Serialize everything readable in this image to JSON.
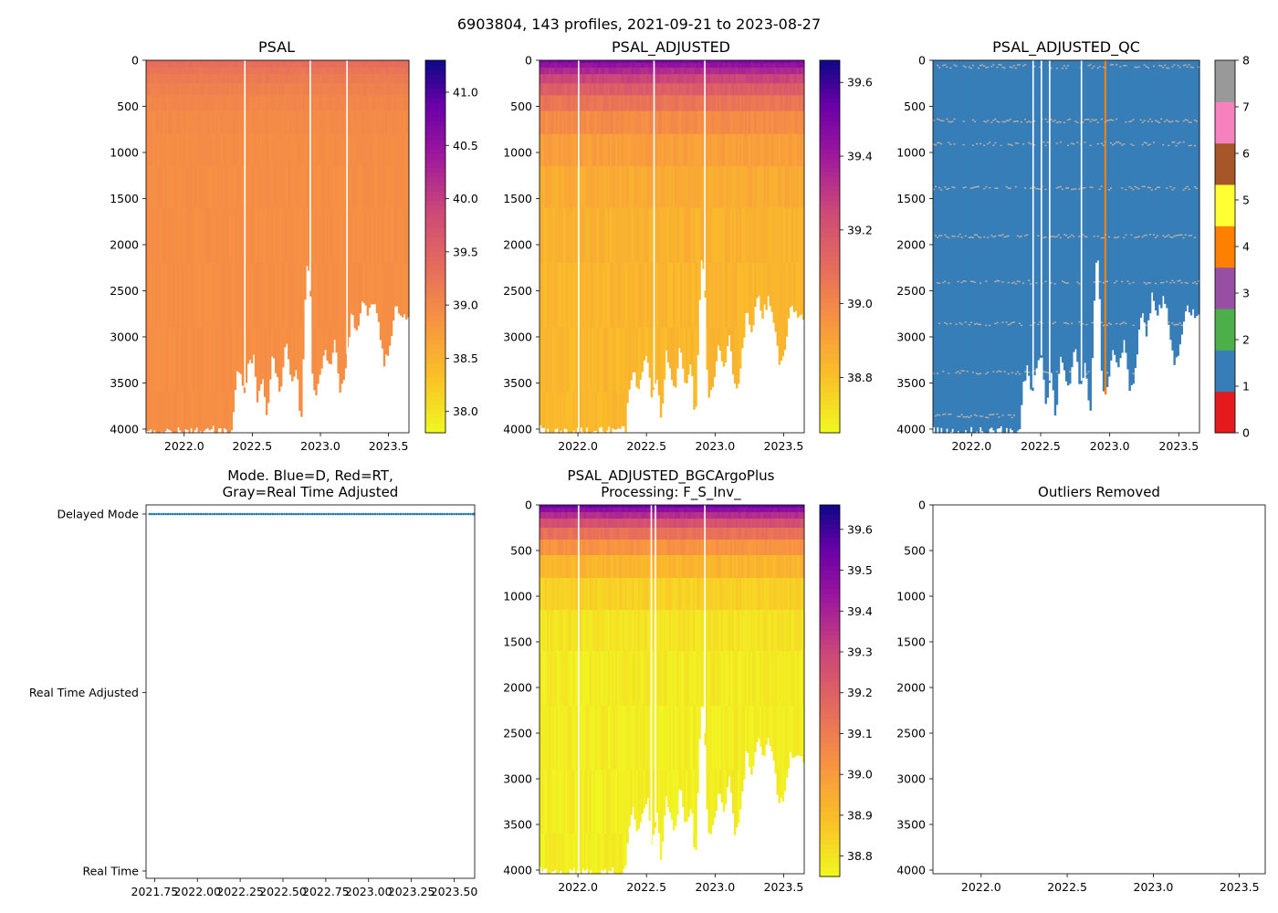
{
  "figure": {
    "suptitle": "6903804, 143 profiles, 2021-09-21 to 2023-08-27"
  },
  "chart_data": [
    {
      "id": "psal",
      "type": "heatmap",
      "title": "PSAL",
      "xlim": [
        2021.72,
        2023.65
      ],
      "ylim": [
        4040,
        0
      ],
      "xticks": [
        "2022.0",
        "2022.5",
        "2023.0",
        "2023.5"
      ],
      "xtick_values": [
        2022.0,
        2022.5,
        2023.0,
        2023.5
      ],
      "yticks": [
        "0",
        "500",
        "1000",
        "1500",
        "2000",
        "2500",
        "3000",
        "3500",
        "4000"
      ],
      "ytick_values": [
        0,
        500,
        1000,
        1500,
        2000,
        2500,
        3000,
        3500,
        4000
      ],
      "gap_times": [
        2022.44,
        2022.92,
        2023.19
      ],
      "colorbar": {
        "vmin": 37.8,
        "vmax": 41.3,
        "palette": "plasma_r",
        "ticks": [
          "38.0",
          "38.5",
          "39.0",
          "39.5",
          "40.0",
          "40.5",
          "41.0"
        ],
        "tick_values": [
          38.0,
          38.5,
          39.0,
          39.5,
          40.0,
          40.5,
          41.0
        ]
      }
    },
    {
      "id": "psal_adjusted",
      "type": "heatmap",
      "title": "PSAL_ADJUSTED",
      "xlim": [
        2021.72,
        2023.65
      ],
      "ylim": [
        4040,
        0
      ],
      "xticks": [
        "2022.0",
        "2022.5",
        "2023.0",
        "2023.5"
      ],
      "xtick_values": [
        2022.0,
        2022.5,
        2023.0,
        2023.5
      ],
      "yticks": [
        "0",
        "500",
        "1000",
        "1500",
        "2000",
        "2500",
        "3000",
        "3500",
        "4000"
      ],
      "ytick_values": [
        0,
        500,
        1000,
        1500,
        2000,
        2500,
        3000,
        3500,
        4000
      ],
      "gap_times": [
        2022.0,
        2022.55,
        2022.92
      ],
      "colorbar": {
        "vmin": 38.65,
        "vmax": 39.66,
        "palette": "plasma_r",
        "ticks": [
          "38.8",
          "39.0",
          "39.2",
          "39.4",
          "39.6"
        ],
        "tick_values": [
          38.8,
          39.0,
          39.2,
          39.4,
          39.6
        ]
      }
    },
    {
      "id": "psal_adjusted_qc",
      "type": "heatmap",
      "title": "PSAL_ADJUSTED_QC",
      "xlim": [
        2021.72,
        2023.65
      ],
      "ylim": [
        4040,
        0
      ],
      "xticks": [
        "2022.0",
        "2022.5",
        "2023.0",
        "2023.5"
      ],
      "xtick_values": [
        2022.0,
        2022.5,
        2023.0,
        2023.5
      ],
      "yticks": [
        "0",
        "500",
        "1000",
        "1500",
        "2000",
        "2500",
        "3000",
        "3500",
        "4000"
      ],
      "ytick_values": [
        0,
        500,
        1000,
        1500,
        2000,
        2500,
        3000,
        3500,
        4000
      ],
      "gap_times": [
        2022.44,
        2022.5,
        2022.56,
        2022.79
      ],
      "qc_flagged_depths": [
        60,
        650,
        900,
        1380,
        1900,
        2400,
        2850,
        3380,
        3850
      ],
      "qc4_profile_time": 2022.96,
      "colorbar": {
        "vmin": 0,
        "vmax": 8,
        "palette": "qc",
        "ticks": [
          "0",
          "1",
          "2",
          "3",
          "4",
          "5",
          "6",
          "7",
          "8"
        ],
        "tick_values": [
          0,
          1,
          2,
          3,
          4,
          5,
          6,
          7,
          8
        ],
        "colors": [
          "#e41a1c",
          "#377eb8",
          "#4daf4a",
          "#984ea3",
          "#ff7f00",
          "#ffff33",
          "#a65628",
          "#f781bf",
          "#999999"
        ]
      }
    },
    {
      "id": "mode",
      "type": "scatter",
      "title_line1": "Mode. Blue=D, Red=RT,",
      "title_line2": "Gray=Real Time Adjusted",
      "xlim": [
        2021.7,
        2023.62
      ],
      "ylim": [
        0,
        2
      ],
      "xticks": [
        "2021.75",
        "2022.00",
        "2022.25",
        "2022.50",
        "2022.75",
        "2023.00",
        "2023.25",
        "2023.50"
      ],
      "xtick_values": [
        2021.75,
        2022.0,
        2022.25,
        2022.5,
        2022.75,
        2023.0,
        2023.25,
        2023.5
      ],
      "yticks": [
        "Real Time",
        "Real Time Adjusted",
        "Delayed Mode"
      ],
      "ytick_values": [
        0,
        1,
        2
      ],
      "series": [
        {
          "name": "Delayed Mode",
          "color": "#1f77b4",
          "mode_value": 2,
          "n_points": 143,
          "t_start": 2021.72,
          "t_end": 2023.65
        }
      ]
    },
    {
      "id": "psal_adjusted_bgcargoplus",
      "type": "heatmap",
      "title_line1": "PSAL_ADJUSTED_BGCArgoPlus",
      "title_line2": "Processing: F_S_Inv_",
      "xlim": [
        2021.72,
        2023.65
      ],
      "ylim": [
        4040,
        0
      ],
      "xticks": [
        "2022.0",
        "2022.5",
        "2023.0",
        "2023.5"
      ],
      "xtick_values": [
        2022.0,
        2022.5,
        2023.0,
        2023.5
      ],
      "yticks": [
        "0",
        "500",
        "1000",
        "1500",
        "2000",
        "2500",
        "3000",
        "3500",
        "4000"
      ],
      "ytick_values": [
        0,
        500,
        1000,
        1500,
        2000,
        2500,
        3000,
        3500,
        4000
      ],
      "gap_times": [
        2022.0,
        2022.53,
        2022.56,
        2022.92
      ],
      "colorbar": {
        "vmin": 38.75,
        "vmax": 39.66,
        "palette": "plasma_r",
        "ticks": [
          "38.8",
          "38.9",
          "39.0",
          "39.1",
          "39.2",
          "39.3",
          "39.4",
          "39.5",
          "39.6"
        ],
        "tick_values": [
          38.8,
          38.9,
          39.0,
          39.1,
          39.2,
          39.3,
          39.4,
          39.5,
          39.6
        ]
      }
    },
    {
      "id": "outliers_removed",
      "type": "scatter",
      "title": "Outliers Removed",
      "xlim": [
        2021.72,
        2023.65
      ],
      "ylim": [
        4040,
        0
      ],
      "xticks": [
        "2022.0",
        "2022.5",
        "2023.0",
        "2023.5"
      ],
      "xtick_values": [
        2022.0,
        2022.5,
        2023.0,
        2023.5
      ],
      "yticks": [
        "0",
        "500",
        "1000",
        "1500",
        "2000",
        "2500",
        "3000",
        "3500",
        "4000"
      ],
      "ytick_values": [
        0,
        500,
        1000,
        1500,
        2000,
        2500,
        3000,
        3500,
        4000
      ],
      "points": []
    }
  ],
  "float_bottom_depths": [
    {
      "t": 2021.72,
      "depth": 4000
    },
    {
      "t": 2021.8,
      "depth": 4030
    },
    {
      "t": 2021.9,
      "depth": 4040
    },
    {
      "t": 2022.0,
      "depth": 4030
    },
    {
      "t": 2022.1,
      "depth": 4040
    },
    {
      "t": 2022.2,
      "depth": 4010
    },
    {
      "t": 2022.28,
      "depth": 4030
    },
    {
      "t": 2022.34,
      "depth": 4000
    },
    {
      "t": 2022.37,
      "depth": 3500
    },
    {
      "t": 2022.4,
      "depth": 3300
    },
    {
      "t": 2022.43,
      "depth": 3650
    },
    {
      "t": 2022.46,
      "depth": 3350
    },
    {
      "t": 2022.5,
      "depth": 3200
    },
    {
      "t": 2022.53,
      "depth": 3700
    },
    {
      "t": 2022.57,
      "depth": 3400
    },
    {
      "t": 2022.6,
      "depth": 3900
    },
    {
      "t": 2022.64,
      "depth": 3150
    },
    {
      "t": 2022.67,
      "depth": 3450
    },
    {
      "t": 2022.7,
      "depth": 3600
    },
    {
      "t": 2022.74,
      "depth": 3050
    },
    {
      "t": 2022.78,
      "depth": 3550
    },
    {
      "t": 2022.82,
      "depth": 3250
    },
    {
      "t": 2022.85,
      "depth": 3980
    },
    {
      "t": 2022.88,
      "depth": 2600
    },
    {
      "t": 2022.9,
      "depth": 2050
    },
    {
      "t": 2022.92,
      "depth": 2500
    },
    {
      "t": 2022.94,
      "depth": 3650
    },
    {
      "t": 2022.98,
      "depth": 3550
    },
    {
      "t": 2023.02,
      "depth": 3100
    },
    {
      "t": 2023.06,
      "depth": 3350
    },
    {
      "t": 2023.1,
      "depth": 3000
    },
    {
      "t": 2023.14,
      "depth": 3600
    },
    {
      "t": 2023.18,
      "depth": 3350
    },
    {
      "t": 2023.22,
      "depth": 2700
    },
    {
      "t": 2023.26,
      "depth": 2950
    },
    {
      "t": 2023.3,
      "depth": 2550
    },
    {
      "t": 2023.34,
      "depth": 2750
    },
    {
      "t": 2023.38,
      "depth": 2600
    },
    {
      "t": 2023.42,
      "depth": 2800
    },
    {
      "t": 2023.46,
      "depth": 3300
    },
    {
      "t": 2023.5,
      "depth": 3150
    },
    {
      "t": 2023.54,
      "depth": 2700
    },
    {
      "t": 2023.6,
      "depth": 2750
    },
    {
      "t": 2023.65,
      "depth": 2800
    }
  ]
}
